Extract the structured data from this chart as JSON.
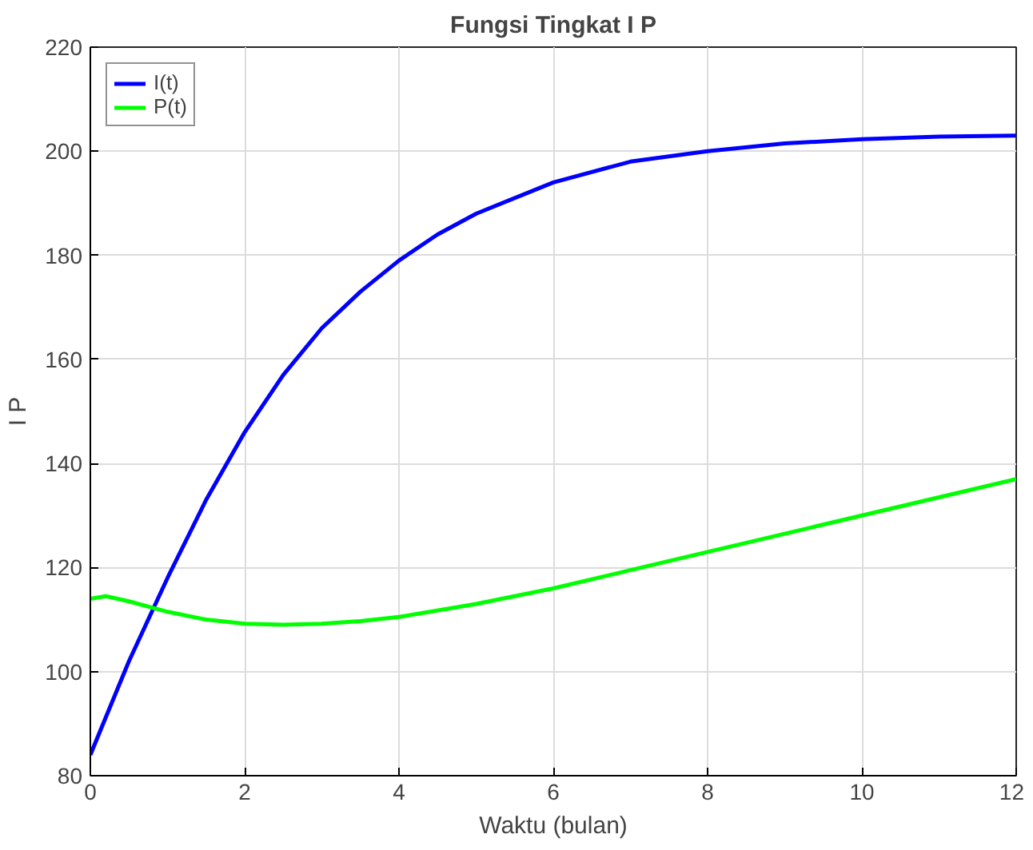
{
  "chart_data": {
    "type": "line",
    "title": "Fungsi Tingkat I P",
    "xlabel": "Waktu (bulan)",
    "ylabel": "I P",
    "xlim": [
      0,
      12
    ],
    "ylim": [
      80,
      220
    ],
    "xticks": [
      0,
      2,
      4,
      6,
      8,
      10,
      12
    ],
    "yticks": [
      80,
      100,
      120,
      140,
      160,
      180,
      200,
      220
    ],
    "grid": true,
    "legend": "top left",
    "line_style": "solid",
    "series": [
      {
        "name": "I(t)",
        "color": "#0000ff",
        "x": [
          0,
          0.25,
          0.5,
          1,
          1.5,
          2,
          2.5,
          3,
          3.5,
          4,
          4.5,
          5,
          6,
          7,
          8,
          9,
          10,
          11,
          12
        ],
        "values": [
          84,
          93,
          102,
          118,
          133,
          146,
          157,
          166,
          173,
          179,
          184,
          188,
          194,
          198,
          200,
          201.5,
          202.3,
          202.8,
          203
        ]
      },
      {
        "name": "P(t)",
        "color": "#00ff00",
        "x": [
          0,
          0.2,
          0.5,
          1,
          1.5,
          2,
          2.5,
          3,
          3.5,
          4,
          5,
          6,
          7,
          8,
          9,
          10,
          11,
          12
        ],
        "values": [
          114,
          114.5,
          113.5,
          111.5,
          110,
          109.2,
          109,
          109.2,
          109.7,
          110.5,
          113,
          116,
          119.5,
          123,
          126.5,
          130,
          133.5,
          137
        ]
      }
    ]
  }
}
